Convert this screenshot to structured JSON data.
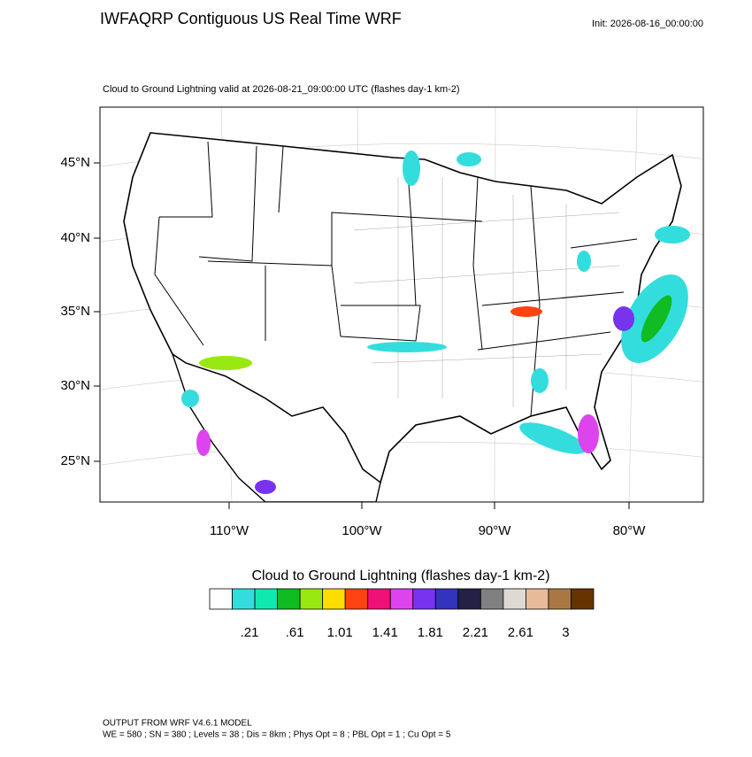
{
  "header": {
    "title": "IWFAQRP Contiguous US Real Time WRF",
    "init": "Init: 2026-08-16_00:00:00",
    "subtitle": "Cloud to Ground Lightning valid at 2026-08-21_09:00:00 UTC   (flashes day-1 km-2)"
  },
  "map": {
    "lat_labels": [
      "45°N",
      "40°N",
      "35°N",
      "30°N",
      "25°N"
    ],
    "lon_labels": [
      "110°W",
      "100°W",
      "90°W",
      "80°W"
    ]
  },
  "colorbar": {
    "title": "Cloud to Ground Lightning  (flashes day-1 km-2)",
    "colors": [
      "#ffffff",
      "#33dddd",
      "#11e8b0",
      "#11bb22",
      "#99e811",
      "#ffdd00",
      "#ff4411",
      "#ee1177",
      "#dd44ee",
      "#7733ee",
      "#3333bb",
      "#222244",
      "#808080",
      "#dddad4",
      "#e6bb99",
      "#aa7744",
      "#663300"
    ],
    "labels": [
      ".21",
      ".61",
      "1.01",
      "1.41",
      "1.81",
      "2.21",
      "2.61",
      "3"
    ]
  },
  "footer": {
    "line1": "OUTPUT FROM WRF V4.6.1 MODEL",
    "line2": "WE = 580 ; SN = 380 ; Levels = 38 ; Dis = 8km ; Phys Opt = 8 ; PBL Opt = 1 ; Cu Opt = 5"
  }
}
